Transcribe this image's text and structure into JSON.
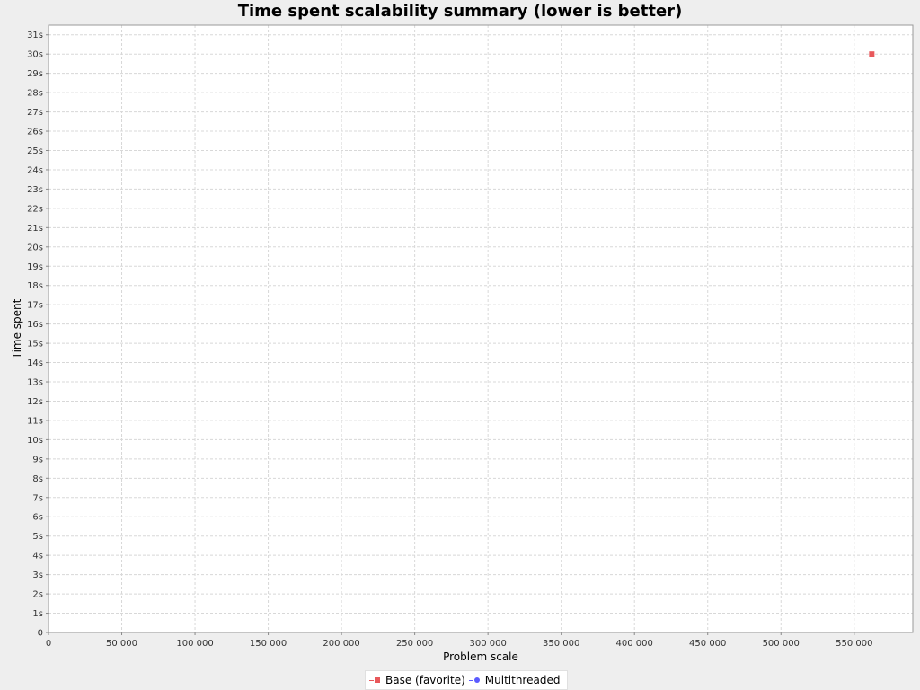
{
  "chart_data": {
    "type": "scatter",
    "title": "Time spent scalability summary (lower is better)",
    "xlabel": "Problem scale",
    "ylabel": "Time spent",
    "xlim": [
      0,
      590000
    ],
    "ylim": [
      0,
      31.5
    ],
    "x_ticks": [
      0,
      50000,
      100000,
      150000,
      200000,
      250000,
      300000,
      350000,
      400000,
      450000,
      500000,
      550000
    ],
    "x_tick_labels": [
      "0",
      "50 000",
      "100 000",
      "150 000",
      "200 000",
      "250 000",
      "300 000",
      "350 000",
      "400 000",
      "450 000",
      "500 000",
      "550 000"
    ],
    "y_ticks": [
      0,
      1,
      2,
      3,
      4,
      5,
      6,
      7,
      8,
      9,
      10,
      11,
      12,
      13,
      14,
      15,
      16,
      17,
      18,
      19,
      20,
      21,
      22,
      23,
      24,
      25,
      26,
      27,
      28,
      29,
      30,
      31
    ],
    "y_tick_labels": [
      "0",
      "1s",
      "2s",
      "3s",
      "4s",
      "5s",
      "6s",
      "7s",
      "8s",
      "9s",
      "10s",
      "11s",
      "12s",
      "13s",
      "14s",
      "15s",
      "16s",
      "17s",
      "18s",
      "19s",
      "20s",
      "21s",
      "22s",
      "23s",
      "24s",
      "25s",
      "26s",
      "27s",
      "28s",
      "29s",
      "30s",
      "31s"
    ],
    "grid": true,
    "legend_position": "bottom-center",
    "series": [
      {
        "name": "Base (favorite)",
        "color": "#e8585b",
        "marker": "square",
        "points": [
          [
            562000,
            30
          ]
        ]
      },
      {
        "name": "Multithreaded",
        "color": "#5b5bff",
        "marker": "circle",
        "points": []
      }
    ]
  }
}
